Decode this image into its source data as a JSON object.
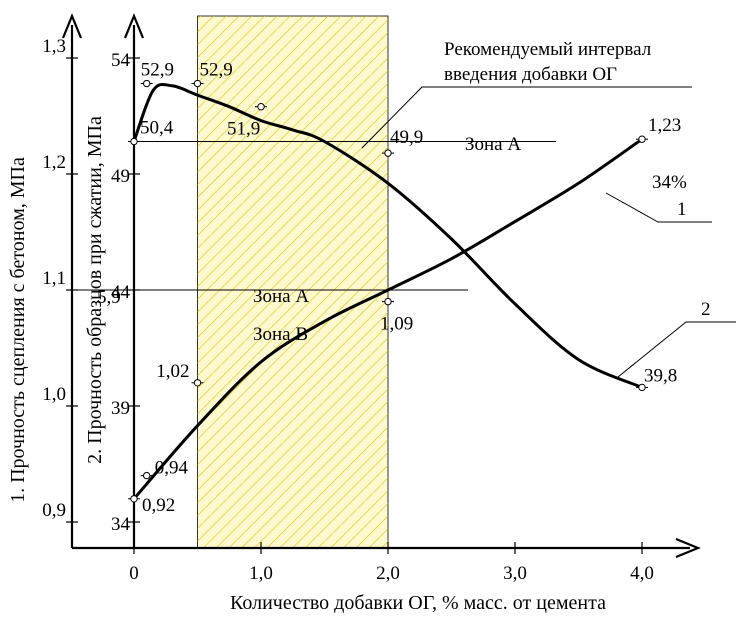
{
  "chart_data": {
    "type": "line",
    "x_ticks": [
      "0",
      "1,0",
      "2,0",
      "3,0",
      "4,0"
    ],
    "xlabel": "Количество добавки ОГ, % масс. от цемента",
    "y1_label": "1. Прочность сцепления с бетоном, МПа",
    "y1_ticks": [
      "0,9",
      "1,0",
      "1,1",
      "1,2",
      "1,3"
    ],
    "y1_range": [
      0.9,
      1.3
    ],
    "y2_label": "2. Прочность образцов при сжатии, МПа",
    "y2_ticks": [
      "34",
      "39",
      "44",
      "49",
      "54"
    ],
    "y2_range": [
      34,
      54
    ],
    "recommended_interval": {
      "label_line1": "Рекомендуемый интервал",
      "label_line2": "введения добавки ОГ",
      "x_from": 0.5,
      "x_to": 2.0
    },
    "series": [
      {
        "name": "1",
        "axis": "y1",
        "curve_x": [
          0,
          0.5,
          1.0,
          1.5,
          2.0,
          2.5,
          3.0,
          3.5,
          4.0
        ],
        "curve_y": [
          0.92,
          0.983,
          1.038,
          1.073,
          1.1,
          1.127,
          1.159,
          1.192,
          1.23
        ],
        "measured": [
          {
            "x": 0,
            "y": 0.92,
            "label": "0,92"
          },
          {
            "x": 0.1,
            "y": 0.94,
            "label": "0,94"
          },
          {
            "x": 0.5,
            "y": 1.02,
            "label": "1,02"
          },
          {
            "x": 2.0,
            "y": 1.09,
            "label": "1,09"
          },
          {
            "x": 4.0,
            "y": 1.23,
            "label": "1,23"
          }
        ],
        "annotation": "34%"
      },
      {
        "name": "2",
        "axis": "y2",
        "curve_x": [
          0,
          0.15,
          0.3,
          0.5,
          0.75,
          1.0,
          1.25,
          1.5,
          2.0,
          2.5,
          3.0,
          3.5,
          4.0
        ],
        "curve_y": [
          50.4,
          52.6,
          52.8,
          52.4,
          51.9,
          51.3,
          50.9,
          50.4,
          48.6,
          46.2,
          43.4,
          41.0,
          39.8
        ],
        "measured": [
          {
            "x": 0,
            "y": 50.4,
            "label": "50,4"
          },
          {
            "x": 0.1,
            "y": 52.9,
            "label": "52,9"
          },
          {
            "x": 0.5,
            "y": 52.9,
            "label": "52,9"
          },
          {
            "x": 1.0,
            "y": 51.9,
            "label": "51,9"
          },
          {
            "x": 2.0,
            "y": 49.9,
            "label": "49,9"
          },
          {
            "x": 4.0,
            "y": 39.8,
            "label": "39,8"
          }
        ]
      }
    ],
    "reference_lines": [
      {
        "axis": "y2",
        "y": 50.4,
        "label": "Зона А"
      },
      {
        "axis": "y1",
        "y": 1.1,
        "label_above": "Зона А",
        "label_below": "Зона В",
        "value_label": "5,9"
      }
    ],
    "legend": [
      "1",
      "2"
    ]
  }
}
